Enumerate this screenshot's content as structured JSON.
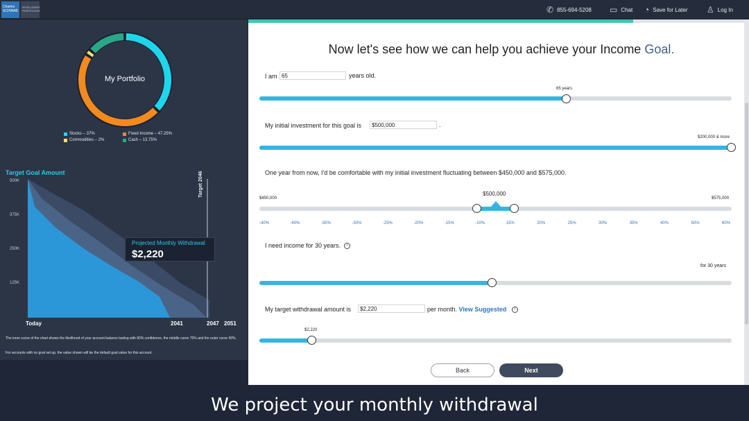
{
  "topbar": {
    "logo_primary": "Charles SCHWAB",
    "logo_secondary": "INTELLIGENT PORTFOLIOS",
    "phone": "855-694-5208",
    "chat": "Chat",
    "save": "Save for Later",
    "login": "Log In"
  },
  "portfolio": {
    "title": "My Portfolio",
    "allocation": [
      {
        "label": "Stocks – 37%",
        "value": 37,
        "color": "#1ed6ec"
      },
      {
        "label": "Fixed Income – 47.25%",
        "value": 47.25,
        "color": "#f28a1f"
      },
      {
        "label": "Commodities – 2%",
        "value": 2,
        "color": "#f2df72"
      },
      {
        "label": "Cash – 13.75%",
        "value": 13.75,
        "color": "#2ba687"
      }
    ]
  },
  "chart_data": {
    "type": "area",
    "title": "Target Goal Amount",
    "y_ticks": [
      "500K",
      "375K",
      "250K",
      "125K"
    ],
    "x_ticks": [
      "Today",
      "2041",
      "2047",
      "2051"
    ],
    "target_label": "Target 2046",
    "tooltip": {
      "label": "Projected Monthly Withdrawal",
      "value": "$2,220"
    },
    "series": [
      {
        "name": "",
        "color": "#3b4b66"
      },
      {
        "name": "",
        "color": "#4a6488"
      },
      {
        "name": "",
        "color": "#2b97d8"
      }
    ]
  },
  "notes": {
    "line1": "The inner curve of the chart shows the likelihood of your account balance lasting with 90% confidence, the middle curve 75% and the outer curve 50%.",
    "line2": "For accounts with no goal set up, the value shown will be the default goal value for this account."
  },
  "form": {
    "heading_main": "Now let's see how we can help you achieve your Income ",
    "heading_goal": "Goal.",
    "age": {
      "prefix": "I am",
      "value": "65",
      "suffix": "years old.",
      "slider_label": "65 years",
      "fraction": 0.65
    },
    "investment": {
      "prefix": "My initial investment for this goal is",
      "value": "$500,000",
      "suffix": ".",
      "slider_label": "$200,000 & more",
      "fraction": 1.0
    },
    "fluctuation": {
      "text": "One year from now, I'd be comfortable with my initial investment fluctuating between $450,000 and $575,000.",
      "min_label": "$450,000",
      "max_label": "$575,000",
      "center_label": "$500,000",
      "pct_labels": [
        "-40%",
        "-40%",
        "-35%",
        "-30%",
        "-25%",
        "-20%",
        "-15%",
        "-10%",
        "15%",
        "20%",
        "25%",
        "30%",
        "35%",
        "40%",
        "50%",
        "60%"
      ]
    },
    "income_years": {
      "text": "I need income for 30 years.",
      "slider_label": "for 30 years",
      "fraction": 0.49
    },
    "withdrawal": {
      "prefix": "My target withdrawal amount is",
      "value": "$2,220",
      "suffix": "per month.",
      "link": "View Suggested",
      "slider_label": "$2,220",
      "fraction": 0.11
    }
  },
  "buttons": {
    "back": "Back",
    "next": "Next"
  },
  "caption": "We project your monthly withdrawal"
}
